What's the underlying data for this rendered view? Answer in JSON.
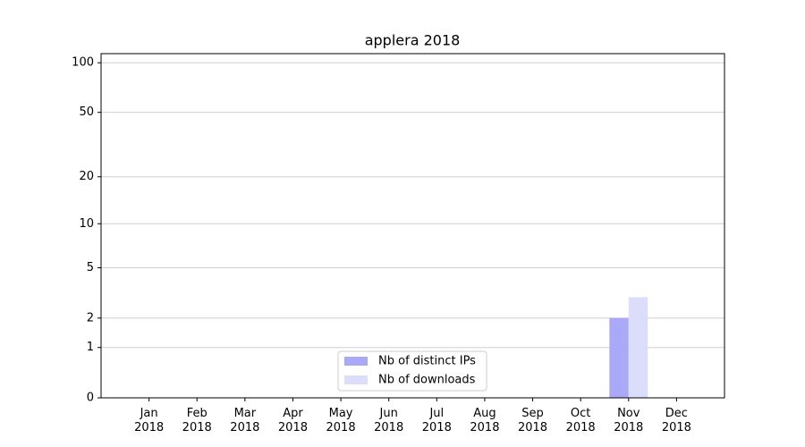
{
  "chart_data": {
    "type": "bar",
    "title": "applera 2018",
    "categories": [
      "Jan 2018",
      "Feb 2018",
      "Mar 2018",
      "Apr 2018",
      "May 2018",
      "Jun 2018",
      "Jul 2018",
      "Aug 2018",
      "Sep 2018",
      "Oct 2018",
      "Nov 2018",
      "Dec 2018"
    ],
    "series": [
      {
        "name": "Nb of distinct IPs",
        "color": "#a9a9f7",
        "values": [
          0,
          0,
          0,
          0,
          0,
          0,
          0,
          0,
          0,
          0,
          2,
          0
        ]
      },
      {
        "name": "Nb of downloads",
        "color": "#dcdcfb",
        "values": [
          0,
          0,
          0,
          0,
          0,
          0,
          0,
          0,
          0,
          0,
          3,
          0
        ]
      }
    ],
    "yscale": "log1p",
    "ylim": [
      0,
      113.5
    ],
    "yticks": [
      0,
      1,
      2,
      5,
      10,
      20,
      50,
      100
    ],
    "grid": true,
    "legend": "lower center"
  }
}
